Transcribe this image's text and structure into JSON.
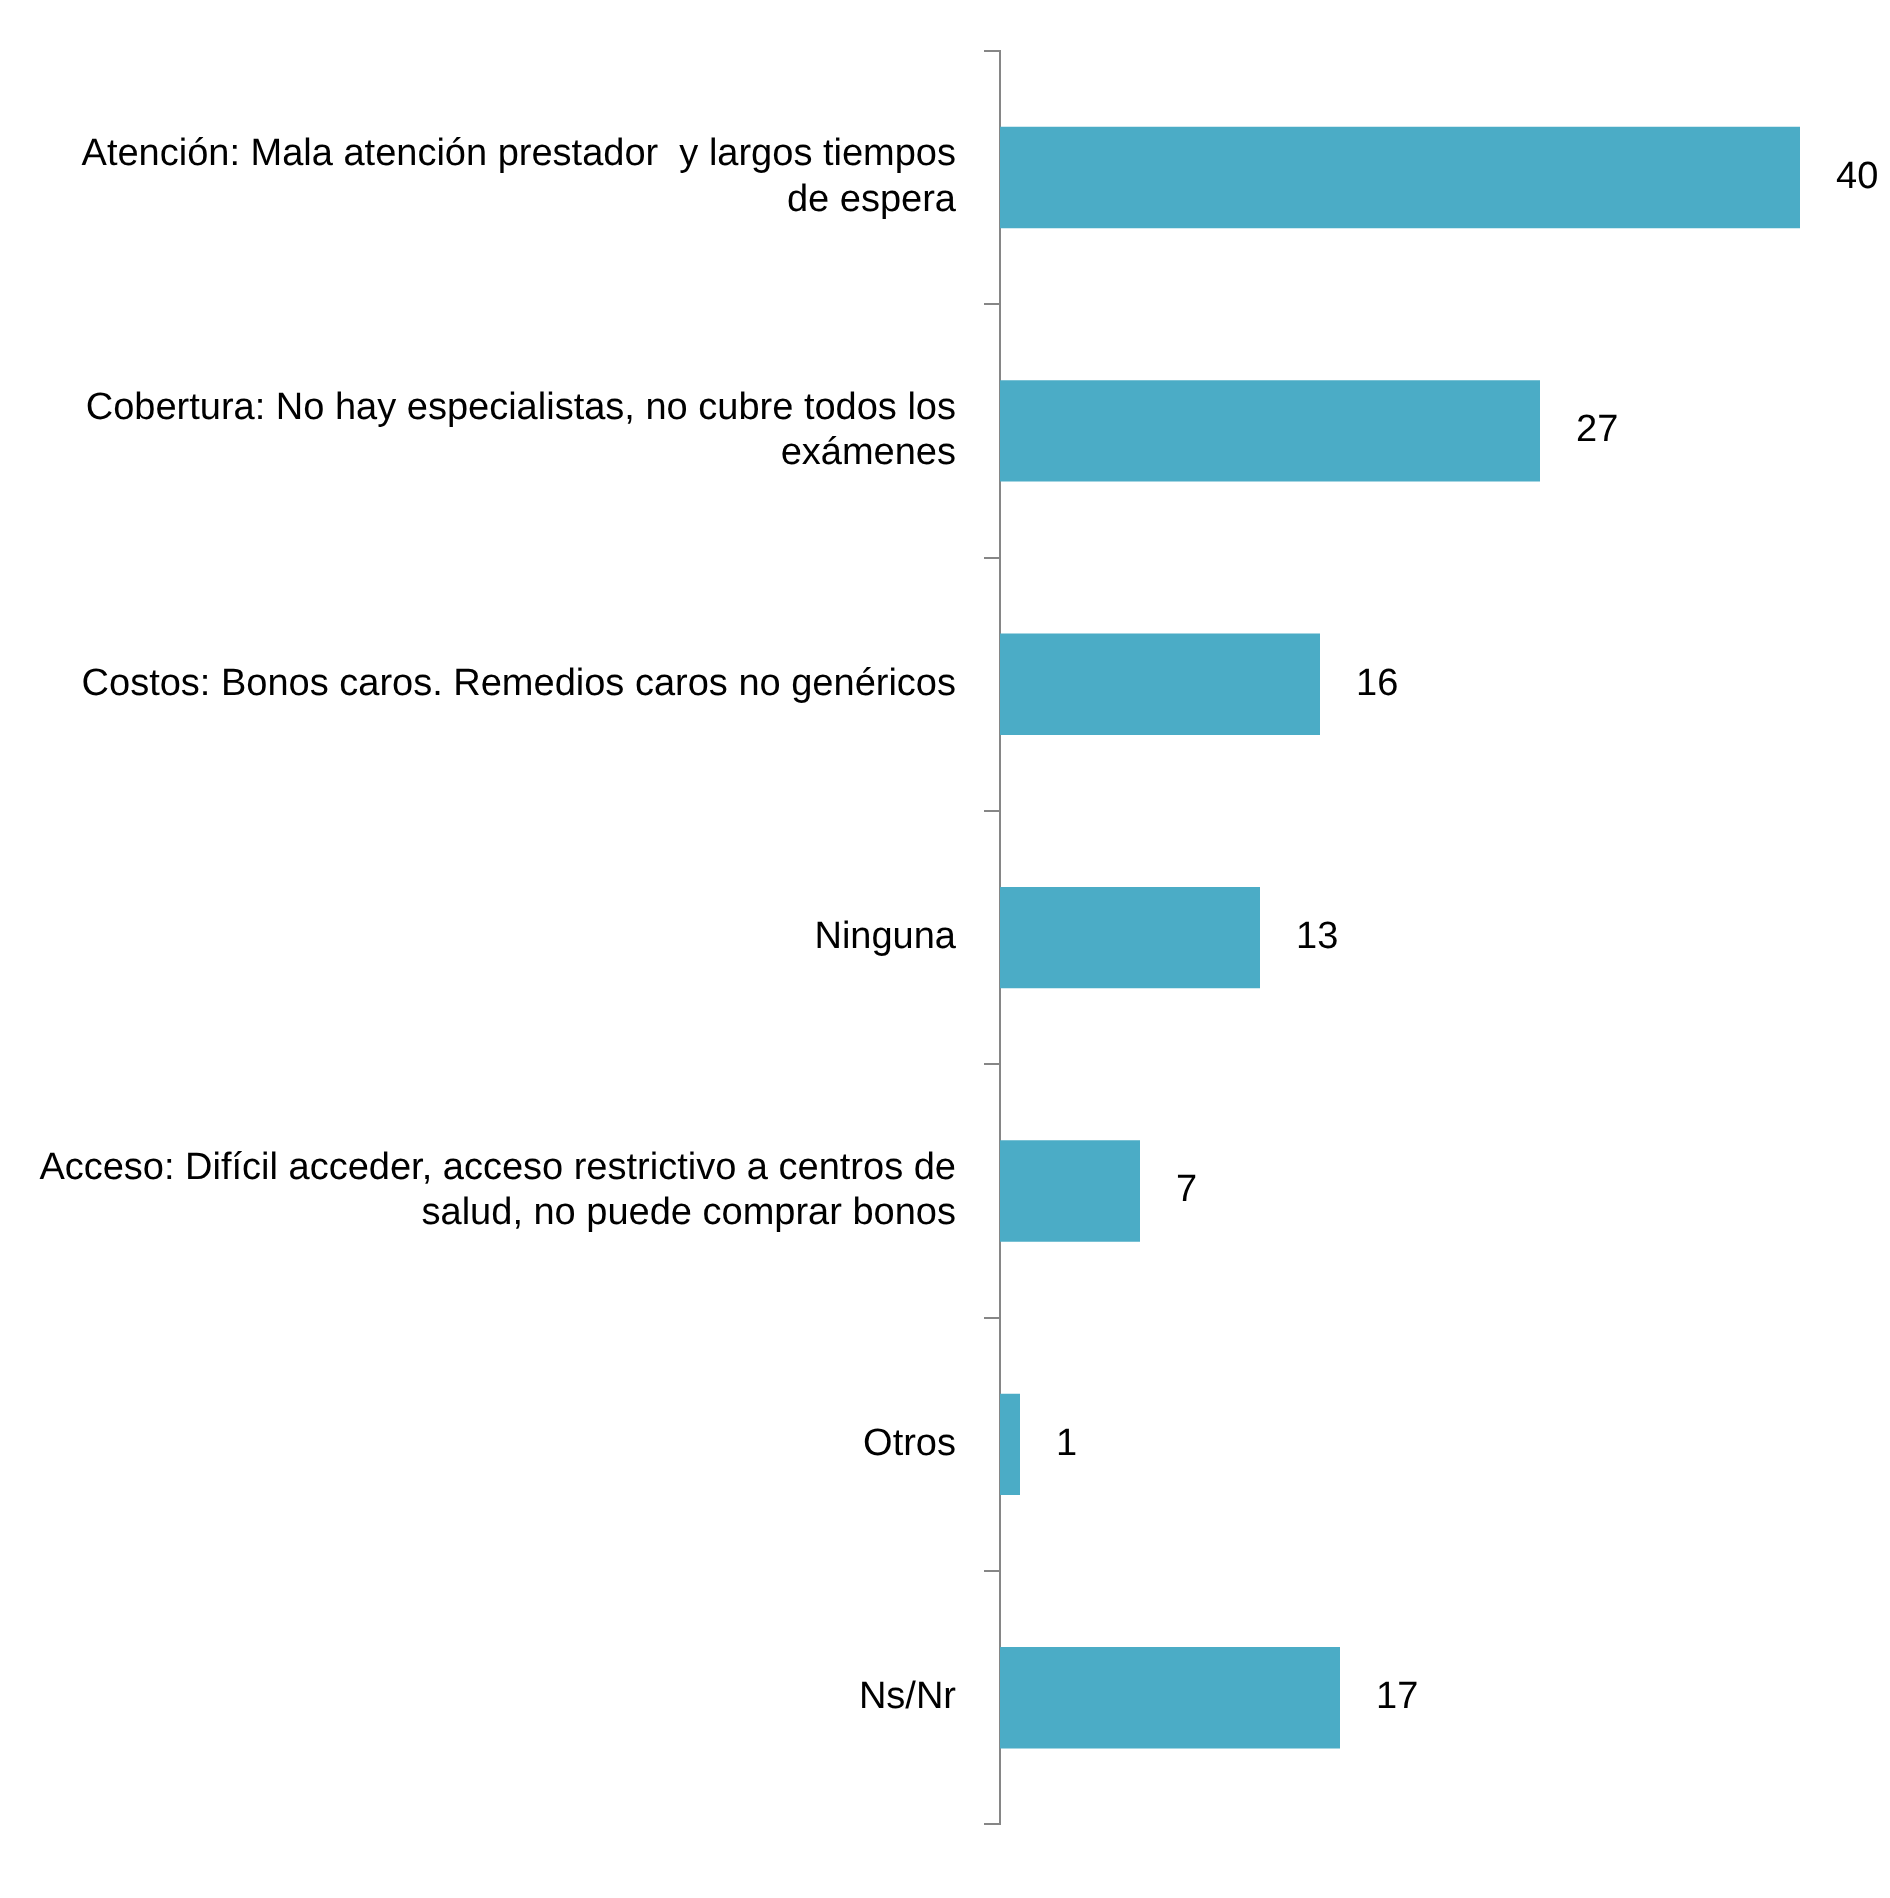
{
  "chart_data": {
    "type": "bar",
    "orientation": "horizontal",
    "categories": [
      "Atención: Mala atención prestador  y largos tiempos de espera",
      "Cobertura: No hay especialistas, no cubre todos los exámenes",
      "Costos: Bonos caros. Remedios caros no genéricos",
      "Ninguna",
      "Acceso: Difícil acceder, acceso restrictivo a centros de salud, no puede comprar bonos",
      "Otros",
      "Ns/Nr"
    ],
    "values": [
      40,
      27,
      16,
      13,
      7,
      1,
      17
    ],
    "color": "#4bacc6",
    "data_labels": true,
    "tick_labels": "y",
    "grid": false,
    "legend": false
  }
}
